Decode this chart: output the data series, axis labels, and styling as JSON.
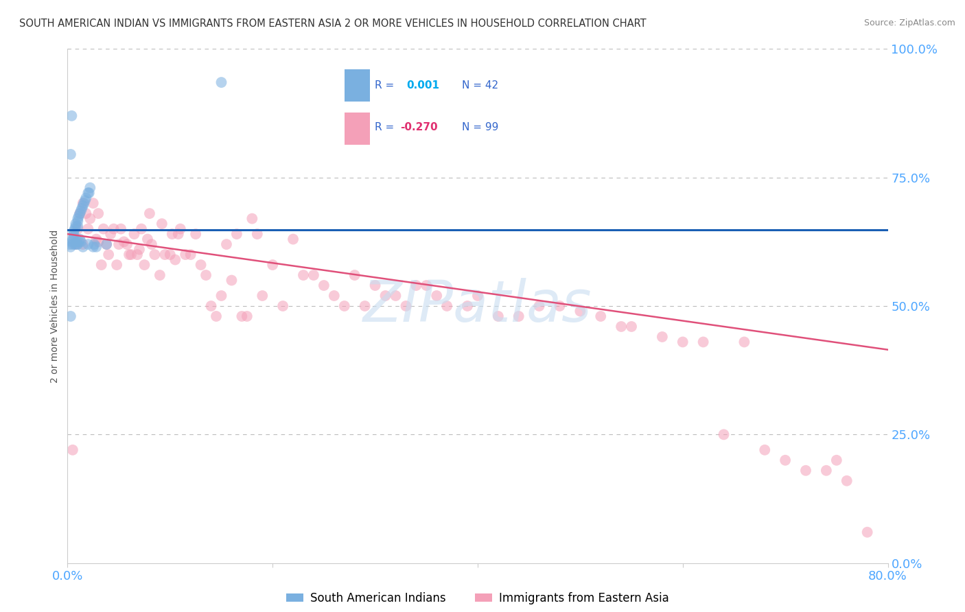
{
  "title": "SOUTH AMERICAN INDIAN VS IMMIGRANTS FROM EASTERN ASIA 2 OR MORE VEHICLES IN HOUSEHOLD CORRELATION CHART",
  "source": "Source: ZipAtlas.com",
  "ylabel": "2 or more Vehicles in Household",
  "blue_label": "South American Indians",
  "pink_label": "Immigrants from Eastern Asia",
  "blue_R": "0.001",
  "blue_N": "42",
  "pink_R": "-0.270",
  "pink_N": "99",
  "xlim": [
    0.0,
    0.8
  ],
  "ylim": [
    0.0,
    1.0
  ],
  "blue_scatter_x": [
    0.003,
    0.004,
    0.005,
    0.005,
    0.006,
    0.006,
    0.006,
    0.007,
    0.007,
    0.008,
    0.008,
    0.009,
    0.009,
    0.01,
    0.01,
    0.01,
    0.01,
    0.011,
    0.011,
    0.012,
    0.012,
    0.013,
    0.013,
    0.014,
    0.015,
    0.015,
    0.016,
    0.017,
    0.018,
    0.02,
    0.02,
    0.021,
    0.022,
    0.025,
    0.026,
    0.028,
    0.038,
    0.003,
    0.004,
    0.003,
    0.15,
    0.002
  ],
  "blue_scatter_y": [
    0.615,
    0.625,
    0.63,
    0.62,
    0.635,
    0.64,
    0.645,
    0.65,
    0.62,
    0.655,
    0.66,
    0.62,
    0.625,
    0.665,
    0.67,
    0.655,
    0.62,
    0.675,
    0.625,
    0.68,
    0.63,
    0.685,
    0.625,
    0.69,
    0.695,
    0.615,
    0.7,
    0.705,
    0.71,
    0.72,
    0.62,
    0.72,
    0.73,
    0.615,
    0.62,
    0.615,
    0.62,
    0.795,
    0.87,
    0.48,
    0.935,
    0.62
  ],
  "pink_scatter_x": [
    0.005,
    0.008,
    0.01,
    0.012,
    0.015,
    0.015,
    0.018,
    0.02,
    0.022,
    0.025,
    0.028,
    0.03,
    0.03,
    0.033,
    0.035,
    0.038,
    0.04,
    0.042,
    0.045,
    0.048,
    0.05,
    0.052,
    0.055,
    0.058,
    0.06,
    0.062,
    0.065,
    0.068,
    0.07,
    0.072,
    0.075,
    0.078,
    0.08,
    0.082,
    0.085,
    0.09,
    0.092,
    0.095,
    0.1,
    0.102,
    0.105,
    0.108,
    0.11,
    0.115,
    0.12,
    0.125,
    0.13,
    0.135,
    0.14,
    0.145,
    0.15,
    0.155,
    0.16,
    0.165,
    0.17,
    0.175,
    0.18,
    0.185,
    0.19,
    0.2,
    0.21,
    0.22,
    0.23,
    0.24,
    0.25,
    0.26,
    0.27,
    0.28,
    0.29,
    0.3,
    0.31,
    0.32,
    0.33,
    0.34,
    0.35,
    0.36,
    0.37,
    0.39,
    0.4,
    0.42,
    0.44,
    0.46,
    0.48,
    0.5,
    0.52,
    0.54,
    0.55,
    0.58,
    0.6,
    0.62,
    0.64,
    0.66,
    0.68,
    0.7,
    0.72,
    0.74,
    0.75,
    0.76,
    0.78
  ],
  "pink_scatter_y": [
    0.22,
    0.62,
    0.65,
    0.68,
    0.7,
    0.62,
    0.68,
    0.65,
    0.67,
    0.7,
    0.63,
    0.625,
    0.68,
    0.58,
    0.65,
    0.62,
    0.6,
    0.64,
    0.65,
    0.58,
    0.62,
    0.65,
    0.625,
    0.62,
    0.6,
    0.6,
    0.64,
    0.6,
    0.61,
    0.65,
    0.58,
    0.63,
    0.68,
    0.62,
    0.6,
    0.56,
    0.66,
    0.6,
    0.6,
    0.64,
    0.59,
    0.64,
    0.65,
    0.6,
    0.6,
    0.64,
    0.58,
    0.56,
    0.5,
    0.48,
    0.52,
    0.62,
    0.55,
    0.64,
    0.48,
    0.48,
    0.67,
    0.64,
    0.52,
    0.58,
    0.5,
    0.63,
    0.56,
    0.56,
    0.54,
    0.52,
    0.5,
    0.56,
    0.5,
    0.54,
    0.52,
    0.52,
    0.5,
    0.54,
    0.54,
    0.52,
    0.5,
    0.5,
    0.52,
    0.48,
    0.48,
    0.5,
    0.5,
    0.49,
    0.48,
    0.46,
    0.46,
    0.44,
    0.43,
    0.43,
    0.25,
    0.43,
    0.22,
    0.2,
    0.18,
    0.18,
    0.2,
    0.16,
    0.06
  ],
  "blue_line_color": "#1a5fb4",
  "pink_line_color": "#e0507a",
  "blue_dot_color": "#7ab0e0",
  "pink_dot_color": "#f4a0b8",
  "grid_color": "#bbbbbb",
  "bg_color": "#ffffff",
  "title_color": "#333333",
  "axis_tick_color": "#4da6ff",
  "ylabel_color": "#555555",
  "source_color": "#888888",
  "watermark_color": "#c8ddf0",
  "legend_text_color": "#3366cc",
  "marker_size": 130,
  "marker_alpha": 0.55,
  "line_alpha_blue": 1.0,
  "line_alpha_pink": 1.0,
  "blue_line_start_y": 0.648,
  "blue_line_end_y": 0.648,
  "pink_line_start_y": 0.64,
  "pink_line_end_y": 0.415
}
